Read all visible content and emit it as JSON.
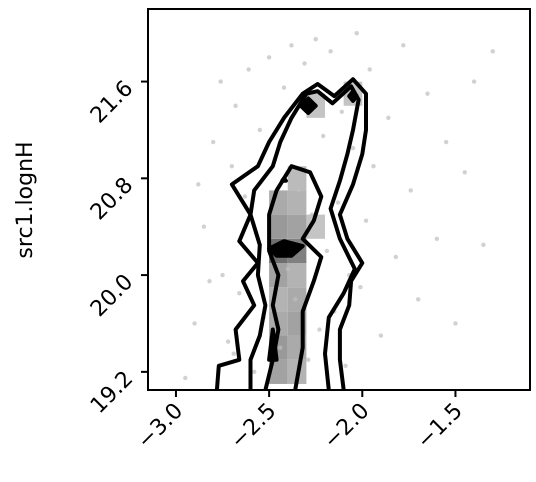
{
  "chart_data": {
    "type": "contour",
    "title": "",
    "xlabel": "",
    "ylabel": "src1.lognH",
    "xlim": [
      -3.15,
      -1.1
    ],
    "ylim": [
      19.05,
      22.2
    ],
    "xticks": [
      {
        "value": -3.0,
        "label": "−3.0"
      },
      {
        "value": -2.5,
        "label": "−2.5"
      },
      {
        "value": -2.0,
        "label": "−2.0"
      },
      {
        "value": -1.5,
        "label": "−1.5"
      }
    ],
    "yticks": [
      {
        "value": 19.2,
        "label": "19.2"
      },
      {
        "value": 20.0,
        "label": "20.0"
      },
      {
        "value": 20.8,
        "label": "20.8"
      },
      {
        "value": 21.6,
        "label": "21.6"
      }
    ],
    "grid": false,
    "colors": {
      "contour": "#000000",
      "points": "#bdbdbd",
      "frame": "#000000"
    },
    "density_cells": [
      {
        "x": -2.45,
        "y": 19.2,
        "level": 0.55
      },
      {
        "x": -2.35,
        "y": 19.2,
        "level": 0.45
      },
      {
        "x": -2.45,
        "y": 19.4,
        "level": 0.6
      },
      {
        "x": -2.35,
        "y": 19.4,
        "level": 0.5
      },
      {
        "x": -2.45,
        "y": 19.6,
        "level": 0.5
      },
      {
        "x": -2.35,
        "y": 19.6,
        "level": 0.55
      },
      {
        "x": -2.45,
        "y": 19.8,
        "level": 0.45
      },
      {
        "x": -2.35,
        "y": 19.8,
        "level": 0.5
      },
      {
        "x": -2.45,
        "y": 20.0,
        "level": 0.55
      },
      {
        "x": -2.35,
        "y": 20.0,
        "level": 0.45
      },
      {
        "x": -2.45,
        "y": 20.2,
        "level": 0.85
      },
      {
        "x": -2.35,
        "y": 20.2,
        "level": 0.75
      },
      {
        "x": -2.45,
        "y": 20.4,
        "level": 0.6
      },
      {
        "x": -2.35,
        "y": 20.4,
        "level": 0.55
      },
      {
        "x": -2.45,
        "y": 20.6,
        "level": 0.5
      },
      {
        "x": -2.35,
        "y": 20.6,
        "level": 0.45
      },
      {
        "x": -2.35,
        "y": 20.8,
        "level": 0.4
      },
      {
        "x": -2.25,
        "y": 20.4,
        "level": 0.35
      },
      {
        "x": -2.25,
        "y": 21.4,
        "level": 0.35
      },
      {
        "x": -2.05,
        "y": 21.5,
        "level": 0.35
      }
    ],
    "contours": [
      {
        "level": "outer",
        "points": [
          [
            -2.78,
            19.05
          ],
          [
            -2.77,
            19.25
          ],
          [
            -2.66,
            19.3
          ],
          [
            -2.68,
            19.55
          ],
          [
            -2.58,
            19.75
          ],
          [
            -2.64,
            19.95
          ],
          [
            -2.56,
            20.1
          ],
          [
            -2.66,
            20.28
          ],
          [
            -2.6,
            20.5
          ],
          [
            -2.7,
            20.75
          ],
          [
            -2.56,
            20.9
          ],
          [
            -2.5,
            21.1
          ],
          [
            -2.42,
            21.3
          ],
          [
            -2.32,
            21.5
          ],
          [
            -2.24,
            21.58
          ],
          [
            -2.15,
            21.48
          ],
          [
            -2.05,
            21.62
          ],
          [
            -1.98,
            21.5
          ],
          [
            -1.98,
            21.2
          ],
          [
            -2.0,
            21.0
          ],
          [
            -2.05,
            20.75
          ],
          [
            -2.12,
            20.5
          ],
          [
            -2.08,
            20.3
          ],
          [
            -2.0,
            20.1
          ],
          [
            -2.06,
            19.95
          ],
          [
            -2.07,
            19.75
          ],
          [
            -2.12,
            19.55
          ],
          [
            -2.12,
            19.3
          ],
          [
            -2.1,
            19.05
          ]
        ]
      },
      {
        "level": "middle",
        "points": [
          [
            -2.6,
            19.05
          ],
          [
            -2.6,
            19.3
          ],
          [
            -2.55,
            19.5
          ],
          [
            -2.52,
            19.75
          ],
          [
            -2.56,
            20.0
          ],
          [
            -2.55,
            20.25
          ],
          [
            -2.6,
            20.5
          ],
          [
            -2.58,
            20.7
          ],
          [
            -2.48,
            20.9
          ],
          [
            -2.44,
            21.1
          ],
          [
            -2.38,
            21.3
          ],
          [
            -2.3,
            21.5
          ],
          [
            -2.24,
            21.52
          ],
          [
            -2.16,
            21.42
          ],
          [
            -2.06,
            21.56
          ],
          [
            -2.02,
            21.45
          ],
          [
            -2.05,
            21.2
          ],
          [
            -2.08,
            21.0
          ],
          [
            -2.12,
            20.78
          ],
          [
            -2.17,
            20.55
          ],
          [
            -2.12,
            20.3
          ],
          [
            -2.04,
            20.05
          ],
          [
            -2.1,
            19.85
          ],
          [
            -2.18,
            19.65
          ],
          [
            -2.2,
            19.35
          ],
          [
            -2.18,
            19.05
          ]
        ]
      },
      {
        "level": "inner",
        "points": [
          [
            -2.52,
            19.05
          ],
          [
            -2.48,
            19.3
          ],
          [
            -2.45,
            19.55
          ],
          [
            -2.48,
            19.75
          ],
          [
            -2.45,
            20.0
          ],
          [
            -2.5,
            20.2
          ],
          [
            -2.5,
            20.5
          ],
          [
            -2.46,
            20.7
          ],
          [
            -2.38,
            20.9
          ],
          [
            -2.28,
            20.85
          ],
          [
            -2.22,
            20.65
          ],
          [
            -2.26,
            20.45
          ],
          [
            -2.32,
            20.3
          ],
          [
            -2.22,
            20.15
          ],
          [
            -2.26,
            19.95
          ],
          [
            -2.32,
            19.7
          ],
          [
            -2.32,
            19.4
          ],
          [
            -2.36,
            19.05
          ]
        ]
      },
      {
        "level": "peak",
        "points": [
          [
            -2.5,
            20.22
          ],
          [
            -2.42,
            20.28
          ],
          [
            -2.32,
            20.24
          ],
          [
            -2.38,
            20.16
          ],
          [
            -2.46,
            20.16
          ]
        ]
      },
      {
        "level": "peak",
        "points": [
          [
            -2.5,
            19.3
          ],
          [
            -2.48,
            19.55
          ],
          [
            -2.46,
            19.3
          ]
        ]
      },
      {
        "level": "peak",
        "points": [
          [
            -2.33,
            21.4
          ],
          [
            -2.29,
            21.46
          ],
          [
            -2.25,
            21.4
          ],
          [
            -2.29,
            21.34
          ]
        ]
      },
      {
        "level": "peak",
        "points": [
          [
            -2.07,
            21.48
          ],
          [
            -2.05,
            21.52
          ],
          [
            -2.03,
            21.48
          ],
          [
            -2.05,
            21.44
          ]
        ]
      },
      {
        "level": "peak",
        "points": [
          [
            -2.43,
            20.78
          ],
          [
            -2.42,
            20.8
          ],
          [
            -2.41,
            20.78
          ]
        ]
      }
    ],
    "scatter_points": [
      [
        -2.95,
        19.15
      ],
      [
        -2.9,
        19.6
      ],
      [
        -2.85,
        20.4
      ],
      [
        -2.8,
        21.1
      ],
      [
        -2.75,
        20.0
      ],
      [
        -2.72,
        19.45
      ],
      [
        -2.7,
        20.9
      ],
      [
        -2.68,
        21.4
      ],
      [
        -2.66,
        19.85
      ],
      [
        -2.63,
        20.65
      ],
      [
        -2.61,
        21.7
      ],
      [
        -2.58,
        19.2
      ],
      [
        -2.57,
        20.35
      ],
      [
        -2.55,
        21.2
      ],
      [
        -2.53,
        19.65
      ],
      [
        -2.5,
        21.8
      ],
      [
        -2.47,
        20.95
      ],
      [
        -2.44,
        19.4
      ],
      [
        -2.42,
        21.55
      ],
      [
        -2.4,
        20.05
      ],
      [
        -2.38,
        21.9
      ],
      [
        -2.36,
        19.8
      ],
      [
        -2.34,
        20.7
      ],
      [
        -2.31,
        21.75
      ],
      [
        -2.29,
        19.3
      ],
      [
        -2.27,
        20.5
      ],
      [
        -2.25,
        21.95
      ],
      [
        -2.23,
        19.55
      ],
      [
        -2.21,
        21.15
      ],
      [
        -2.19,
        20.2
      ],
      [
        -2.17,
        21.85
      ],
      [
        -2.15,
        19.7
      ],
      [
        -2.13,
        20.6
      ],
      [
        -2.11,
        21.35
      ],
      [
        -2.09,
        19.25
      ],
      [
        -2.07,
        20.0
      ],
      [
        -2.05,
        21.05
      ],
      [
        -2.03,
        22.0
      ],
      [
        -2.01,
        19.9
      ],
      [
        -1.98,
        20.45
      ],
      [
        -1.96,
        21.7
      ],
      [
        -1.94,
        20.9
      ],
      [
        -1.9,
        19.5
      ],
      [
        -1.86,
        21.3
      ],
      [
        -1.82,
        20.15
      ],
      [
        -1.78,
        21.9
      ],
      [
        -1.74,
        20.7
      ],
      [
        -1.7,
        19.8
      ],
      [
        -1.65,
        21.5
      ],
      [
        -1.6,
        20.3
      ],
      [
        -1.55,
        21.1
      ],
      [
        -1.5,
        19.6
      ],
      [
        -1.45,
        20.85
      ],
      [
        -1.4,
        21.6
      ],
      [
        -1.35,
        20.25
      ],
      [
        -1.3,
        21.85
      ],
      [
        -2.88,
        20.75
      ],
      [
        -2.82,
        19.95
      ],
      [
        -2.76,
        21.6
      ],
      [
        -2.69,
        19.35
      ]
    ]
  }
}
